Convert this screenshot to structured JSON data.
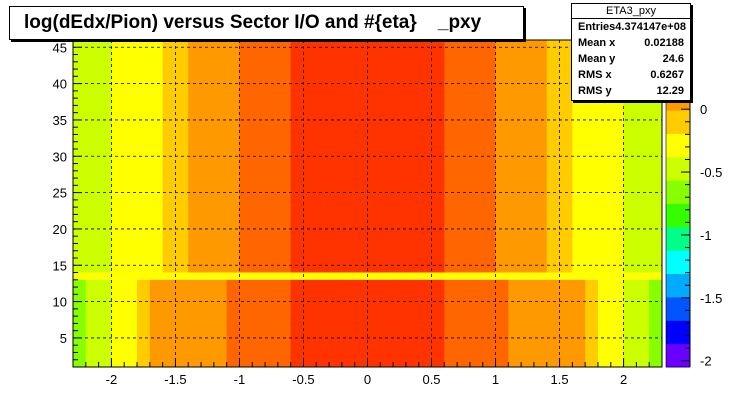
{
  "title": "log(dEdx/Pion) versus Sector I/O and #{eta}    _pxy",
  "stats": {
    "name": "ETA3_pxy",
    "rows": [
      {
        "label": "Entries",
        "value": "4.374147e+08"
      },
      {
        "label": "Mean x",
        "value": "0.02188"
      },
      {
        "label": "Mean y",
        "value": "24.6"
      },
      {
        "label": "RMS x",
        "value": "0.6267"
      },
      {
        "label": "RMS y",
        "value": "12.29"
      }
    ]
  },
  "chart_data": {
    "type": "heatmap",
    "title": "log(dEdx/Pion) versus Sector I/O and #{eta}    _pxy",
    "xlabel": "",
    "ylabel": "",
    "xlim": [
      -2.3,
      2.3
    ],
    "ylim": [
      1,
      46
    ],
    "xticks": [
      "-2",
      "-1.5",
      "-1",
      "-0.5",
      "0",
      "0.5",
      "1",
      "1.5",
      "2"
    ],
    "yticks": [
      "5",
      "10",
      "15",
      "20",
      "25",
      "30",
      "35",
      "40",
      "45"
    ],
    "zlim": [
      -2.05,
      0.55
    ],
    "zticks": [
      "0",
      "-0.5",
      "-1",
      "-1.5",
      "-2"
    ],
    "grid": true,
    "x_bins": [
      -2.25,
      -2.15,
      -2.05,
      -1.95,
      -1.85,
      -1.75,
      -1.65,
      -1.55,
      -1.45,
      -1.35,
      -1.25,
      -1.15,
      -1.05,
      -0.95,
      -0.85,
      -0.75,
      -0.65,
      -0.55,
      -0.45,
      -0.35,
      -0.25,
      -0.15,
      -0.05,
      0.05,
      0.15,
      0.25,
      0.35,
      0.45,
      0.55,
      0.65,
      0.75,
      0.85,
      0.95,
      1.05,
      1.15,
      1.25,
      1.35,
      1.45,
      1.55,
      1.65,
      1.75,
      1.85,
      1.95,
      2.05,
      2.15,
      2.25
    ],
    "z_outer_sectors_y14_to_45": [
      -0.5,
      -0.45,
      -0.4,
      -0.35,
      -0.3,
      -0.25,
      -0.2,
      -0.15,
      -0.1,
      0.0,
      0.05,
      0.1,
      0.15,
      0.2,
      0.25,
      0.3,
      0.35,
      0.4,
      0.45,
      0.5,
      0.52,
      0.52,
      0.52,
      0.52,
      0.52,
      0.52,
      0.5,
      0.45,
      0.4,
      0.35,
      0.3,
      0.25,
      0.2,
      0.15,
      0.1,
      0.05,
      0.0,
      -0.1,
      -0.15,
      -0.2,
      -0.25,
      -0.3,
      -0.35,
      -0.4,
      -0.45,
      -0.5
    ],
    "z_inner_sectors_y1_to_13": [
      -0.6,
      -0.5,
      -0.4,
      -0.3,
      -0.2,
      -0.1,
      0.0,
      0.05,
      0.1,
      0.12,
      0.14,
      0.16,
      0.18,
      0.2,
      0.25,
      0.3,
      0.35,
      0.4,
      0.45,
      0.5,
      0.52,
      0.52,
      0.52,
      0.52,
      0.52,
      0.52,
      0.5,
      0.45,
      0.4,
      0.35,
      0.3,
      0.25,
      0.2,
      0.18,
      0.16,
      0.14,
      0.12,
      0.1,
      0.05,
      0.0,
      -0.1,
      -0.2,
      -0.3,
      -0.4,
      -0.5,
      -0.6
    ],
    "z_boundary_row_y13_to_14": -0.35
  },
  "colors": {
    "palette": [
      "#6a00ff",
      "#0000ff",
      "#0055ff",
      "#00aaff",
      "#00ffff",
      "#00ff88",
      "#33ff00",
      "#88ff00",
      "#ccff00",
      "#ffff00",
      "#ffcc00",
      "#ff9900",
      "#ff6600",
      "#ff3300"
    ]
  }
}
